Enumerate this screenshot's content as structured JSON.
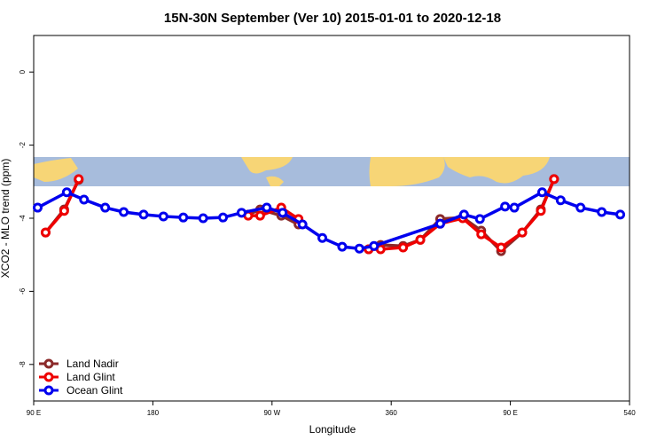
{
  "chart_data": {
    "type": "line",
    "title": "15N-30N September (Ver 10)   2015-01-01 to 2020-12-18",
    "xlabel": "Longitude",
    "ylabel": "XCO2 - MLO trend (ppm)",
    "xlim": [
      90,
      540
    ],
    "ylim": [
      -9,
      1
    ],
    "xticks": [
      {
        "value": 90,
        "label": "90 E"
      },
      180,
      {
        "value": 270,
        "label": "90 W"
      },
      360,
      {
        "value": 450,
        "label": "90 E"
      },
      540
    ],
    "yticks": [
      0,
      -2,
      -4,
      -6,
      -8
    ],
    "legend": "bottom-left",
    "series": [
      {
        "name": "Land Nadir",
        "color": "#8b2a2a",
        "x": [
          99,
          113,
          124,
          null,
          252,
          261,
          277,
          290,
          null,
          343,
          352,
          369,
          382,
          397,
          414,
          428,
          443,
          459,
          473,
          483
        ],
        "values": [
          -4.39,
          -3.76,
          -2.95,
          null,
          -3.9,
          -3.76,
          -3.93,
          -4.17,
          null,
          -4.85,
          -4.73,
          -4.76,
          -4.59,
          -4.02,
          -3.98,
          -4.34,
          -4.9,
          -4.39,
          -3.76,
          -2.93
        ]
      },
      {
        "name": "Land Glint",
        "color": "#ee0000",
        "x": [
          99,
          113,
          124,
          null,
          252,
          261,
          277,
          290,
          null,
          343,
          352,
          369,
          382,
          397,
          414,
          428,
          443,
          459,
          473,
          483
        ],
        "values": [
          -4.39,
          -3.8,
          -2.93,
          null,
          -3.93,
          -3.93,
          -3.71,
          -4.02,
          null,
          -4.85,
          -4.85,
          -4.8,
          -4.59,
          -4.15,
          -4.0,
          -4.44,
          -4.8,
          -4.39,
          -3.8,
          -2.93
        ]
      },
      {
        "name": "Ocean Glint",
        "color": "#0000ee",
        "x": [
          93,
          115,
          128,
          144,
          158,
          173,
          188,
          203,
          218,
          233,
          247,
          266,
          278,
          293,
          308,
          323,
          336,
          347,
          397,
          415,
          427,
          446,
          453,
          474,
          488,
          503,
          519,
          533
        ],
        "values": [
          -3.71,
          -3.29,
          -3.49,
          -3.71,
          -3.83,
          -3.9,
          -3.95,
          -3.98,
          -4.0,
          -3.98,
          -3.85,
          -3.71,
          -3.85,
          -4.17,
          -4.54,
          -4.78,
          -4.83,
          -4.76,
          -4.15,
          -3.9,
          -4.02,
          -3.68,
          -3.71,
          -3.29,
          -3.51,
          -3.71,
          -3.83,
          -3.9
        ]
      }
    ]
  }
}
